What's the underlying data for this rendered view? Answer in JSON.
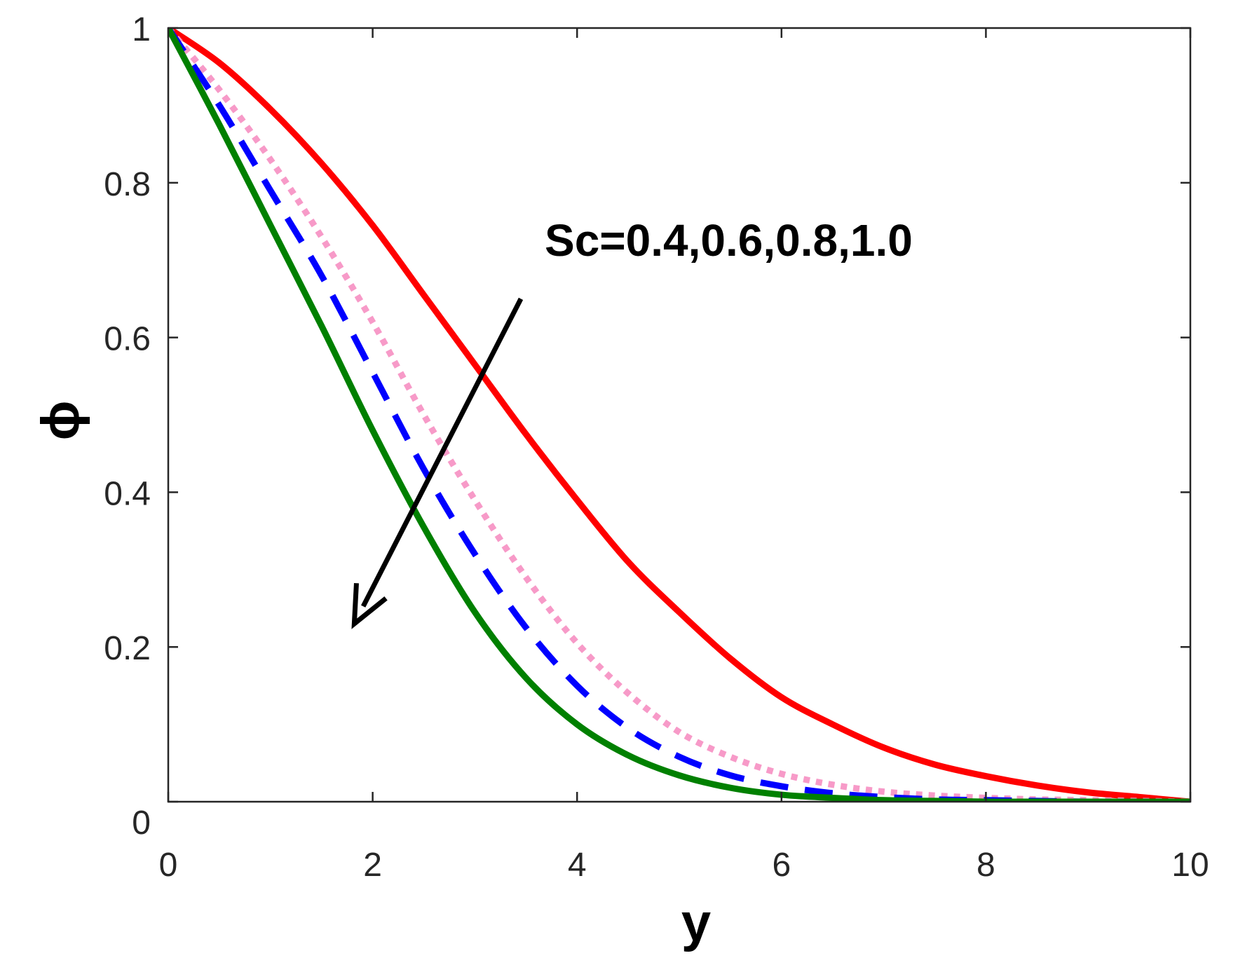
{
  "chart_data": {
    "type": "line",
    "xlabel": "y",
    "ylabel": "ϕ",
    "xlim": [
      0,
      10
    ],
    "ylim": [
      0,
      1
    ],
    "xticks": [
      0,
      2,
      4,
      6,
      8,
      10
    ],
    "yticks": [
      0,
      0.2,
      0.4,
      0.6,
      0.8,
      1
    ],
    "xtick_labels": [
      "0",
      "2",
      "4",
      "6",
      "8",
      "10"
    ],
    "ytick_labels": [
      "0",
      "0.2",
      "0.4",
      "0.6",
      "0.8",
      "1"
    ],
    "grid": false,
    "annotation": {
      "text": "Sc=0.4,0.6,0.8,1.0",
      "arrow_from": [
        3.45,
        0.65
      ],
      "arrow_to": [
        1.82,
        0.23
      ]
    },
    "series": [
      {
        "style": "solid",
        "color": "#ff0000",
        "x": [
          0,
          0.5,
          1,
          1.5,
          2,
          2.5,
          3,
          3.5,
          4,
          4.5,
          5,
          5.5,
          6,
          6.5,
          7,
          7.5,
          8,
          8.5,
          9,
          9.5,
          10
        ],
        "y": [
          1.0,
          0.955,
          0.895,
          0.825,
          0.745,
          0.655,
          0.565,
          0.475,
          0.39,
          0.31,
          0.245,
          0.185,
          0.135,
          0.1,
          0.07,
          0.048,
          0.033,
          0.021,
          0.012,
          0.006,
          0.0
        ]
      },
      {
        "style": "dotted",
        "color": "#f79ac8",
        "x": [
          0,
          0.5,
          1,
          1.5,
          2,
          2.5,
          3,
          3.5,
          4,
          4.5,
          5,
          5.5,
          6,
          6.5,
          7,
          7.5,
          8,
          8.5,
          9,
          9.5,
          10
        ],
        "y": [
          1.0,
          0.92,
          0.83,
          0.73,
          0.62,
          0.5,
          0.39,
          0.29,
          0.205,
          0.14,
          0.09,
          0.058,
          0.036,
          0.022,
          0.013,
          0.008,
          0.005,
          0.003,
          0.002,
          0.001,
          0.0
        ]
      },
      {
        "style": "dashed",
        "color": "#0000ff",
        "x": [
          0,
          0.5,
          1,
          1.5,
          2,
          2.5,
          3,
          3.5,
          4,
          4.5,
          5,
          5.5,
          6,
          6.5,
          7,
          7.5,
          8,
          8.5,
          9,
          9.5,
          10
        ],
        "y": [
          1.0,
          0.9,
          0.79,
          0.68,
          0.555,
          0.43,
          0.32,
          0.225,
          0.15,
          0.095,
          0.058,
          0.034,
          0.02,
          0.011,
          0.006,
          0.003,
          0.002,
          0.001,
          0.0,
          0.0,
          0.0
        ]
      },
      {
        "style": "solid",
        "color": "#008000",
        "x": [
          0,
          0.5,
          1,
          1.5,
          2,
          2.5,
          3,
          3.5,
          4,
          4.5,
          5,
          5.5,
          6,
          6.5,
          7,
          7.5,
          8,
          8.5,
          9,
          9.5,
          10
        ],
        "y": [
          1.0,
          0.875,
          0.745,
          0.615,
          0.48,
          0.355,
          0.245,
          0.16,
          0.1,
          0.06,
          0.034,
          0.018,
          0.009,
          0.005,
          0.002,
          0.001,
          0.0,
          0.0,
          0.0,
          0.0,
          0.0
        ]
      }
    ]
  }
}
